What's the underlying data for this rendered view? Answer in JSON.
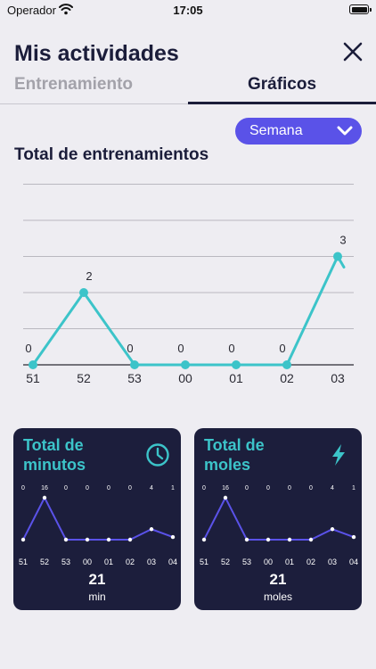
{
  "status_bar": {
    "carrier": "Operador",
    "time": "17:05"
  },
  "header": {
    "title": "Mis actividades"
  },
  "tabs": [
    {
      "label": "Entrenamiento",
      "active": false
    },
    {
      "label": "Gráficos",
      "active": true
    }
  ],
  "period_select": {
    "value": "Semana"
  },
  "main_section": {
    "title": "Total de entrenamientos"
  },
  "colors": {
    "accent_teal": "#3cc4c9",
    "accent_purple": "#5a52e8",
    "card_bg": "#1c1e3c",
    "text_dark": "#1b1d3a"
  },
  "chart_data": [
    {
      "type": "line",
      "title": "Total de entrenamientos",
      "categories": [
        "51",
        "52",
        "53",
        "00",
        "01",
        "02",
        "03"
      ],
      "series": [
        {
          "values": [
            0,
            2,
            0,
            0,
            0,
            0,
            3
          ]
        }
      ],
      "ylim": [
        0,
        5
      ],
      "grid": true
    },
    {
      "type": "line",
      "title": "Total de minutos",
      "categories": [
        "51",
        "52",
        "53",
        "00",
        "01",
        "02",
        "03",
        "04"
      ],
      "series": [
        {
          "values": [
            0,
            16,
            0,
            0,
            0,
            0,
            4,
            1
          ]
        }
      ],
      "total": "21",
      "unit": "min",
      "icon": "clock-icon"
    },
    {
      "type": "line",
      "title": "Total de moles",
      "categories": [
        "51",
        "52",
        "53",
        "00",
        "01",
        "02",
        "03",
        "04"
      ],
      "series": [
        {
          "values": [
            0,
            16,
            0,
            0,
            0,
            0,
            4,
            1
          ]
        }
      ],
      "total": "21",
      "unit": "moles",
      "icon": "lightning-icon"
    }
  ],
  "cards": [
    {
      "title_line1": "Total de",
      "title_line2": "minutos",
      "total": "21",
      "unit": "min"
    },
    {
      "title_line1": "Total de",
      "title_line2": "moles",
      "total": "21",
      "unit": "moles"
    }
  ]
}
